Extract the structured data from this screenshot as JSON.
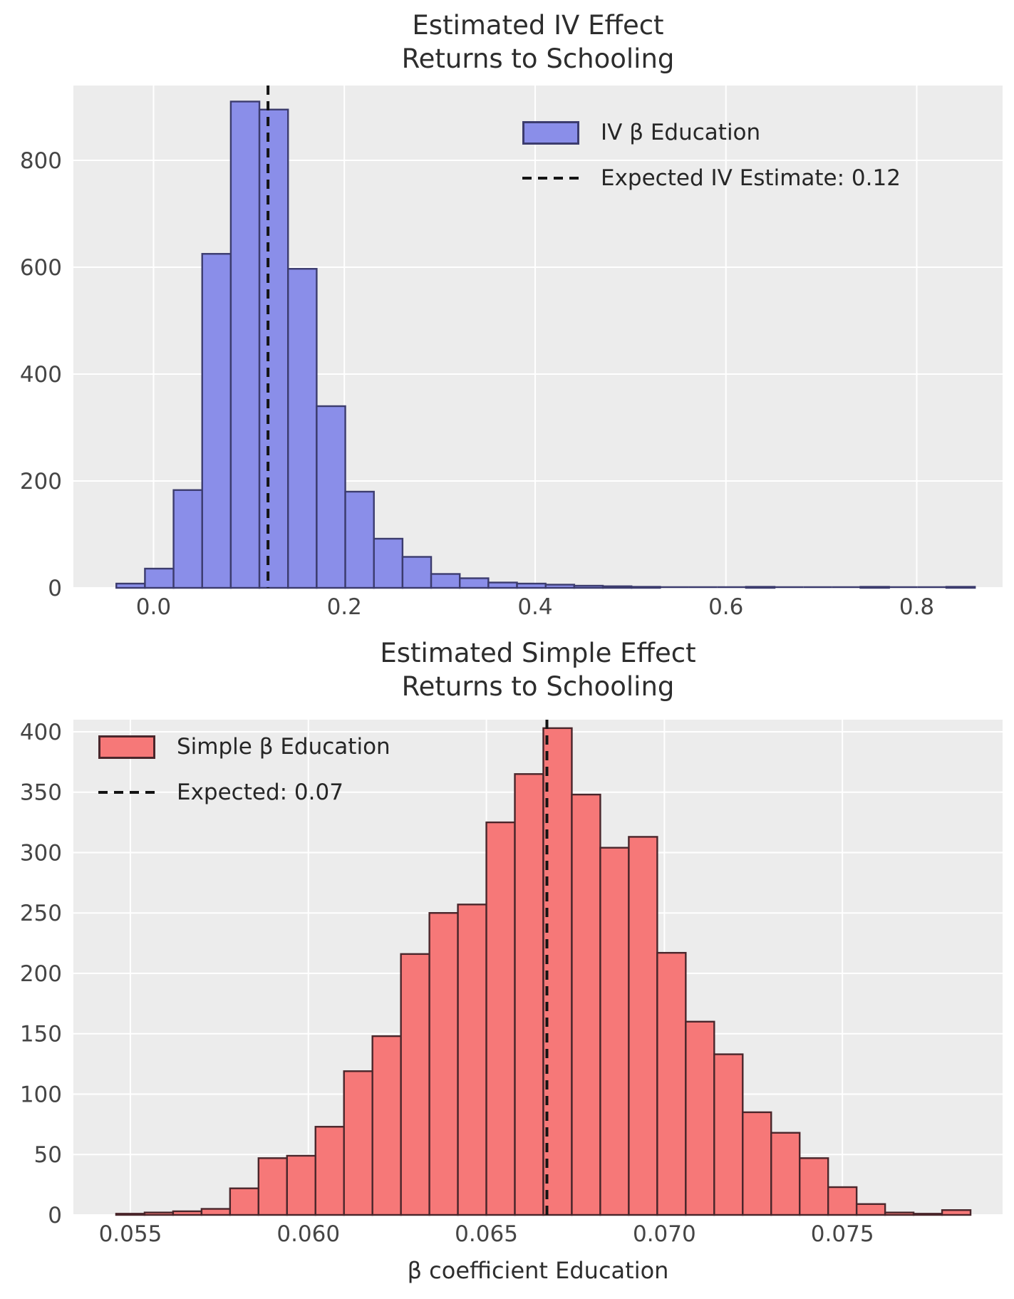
{
  "style": {
    "figure_background": "#ffffff",
    "axes_background": "#ececec",
    "grid_color": "#ffffff",
    "title_color": "#2d2d2d",
    "tick_color": "#454545",
    "legend_text_color": "#262626"
  },
  "chart_data": [
    {
      "type": "bar",
      "subtype": "histogram",
      "title": "Estimated IV Effect\nReturns to Schooling",
      "legend": {
        "position": "upper right",
        "patch_label": "IV β Education",
        "line_label": "Expected IV Estimate: 0.12"
      },
      "colors": {
        "bar_fill": "#8a8ee9",
        "bar_edge": "#3c3c6e",
        "vline": "#141414"
      },
      "vline_value": 0.12,
      "bin_start": -0.039,
      "bin_width": 0.03,
      "counts": [
        8,
        36,
        183,
        625,
        910,
        895,
        597,
        340,
        180,
        92,
        58,
        26,
        18,
        10,
        8,
        6,
        4,
        3,
        2,
        0,
        0,
        0,
        2,
        0,
        0,
        0,
        2,
        0,
        0,
        2
      ],
      "xlim": [
        -0.084,
        0.89
      ],
      "ylim": [
        0,
        940
      ],
      "grid": true,
      "xticks": [
        {
          "v": 0.0,
          "label": "0.0"
        },
        {
          "v": 0.2,
          "label": "0.2"
        },
        {
          "v": 0.4,
          "label": "0.4"
        },
        {
          "v": 0.6,
          "label": "0.6"
        },
        {
          "v": 0.8,
          "label": "0.8"
        }
      ],
      "yticks": [
        {
          "v": 0,
          "label": "0"
        },
        {
          "v": 200,
          "label": "200"
        },
        {
          "v": 400,
          "label": "400"
        },
        {
          "v": 600,
          "label": "600"
        },
        {
          "v": 800,
          "label": "800"
        }
      ]
    },
    {
      "type": "bar",
      "subtype": "histogram",
      "title": "Estimated Simple Effect\nReturns to Schooling",
      "xlabel": "β coefficient Education",
      "legend": {
        "position": "upper left",
        "patch_label": "Simple β Education",
        "line_label": "Expected: 0.07"
      },
      "colors": {
        "bar_fill": "#f67878",
        "bar_edge": "#4a262b",
        "vline": "#141414"
      },
      "vline_value": 0.0667,
      "bin_start": 0.0546,
      "bin_width": 0.0008,
      "counts": [
        1,
        2,
        3,
        5,
        22,
        47,
        49,
        73,
        119,
        148,
        216,
        250,
        257,
        325,
        365,
        403,
        348,
        304,
        313,
        217,
        160,
        133,
        85,
        68,
        47,
        23,
        9,
        2,
        1,
        4
      ],
      "xlim": [
        0.0534,
        0.0795
      ],
      "ylim": [
        0,
        410
      ],
      "grid": true,
      "xticks": [
        {
          "v": 0.055,
          "label": "0.055"
        },
        {
          "v": 0.06,
          "label": "0.060"
        },
        {
          "v": 0.065,
          "label": "0.065"
        },
        {
          "v": 0.07,
          "label": "0.070"
        },
        {
          "v": 0.075,
          "label": "0.075"
        }
      ],
      "yticks": [
        {
          "v": 0,
          "label": "0"
        },
        {
          "v": 50,
          "label": "50"
        },
        {
          "v": 100,
          "label": "100"
        },
        {
          "v": 150,
          "label": "150"
        },
        {
          "v": 200,
          "label": "200"
        },
        {
          "v": 250,
          "label": "250"
        },
        {
          "v": 300,
          "label": "300"
        },
        {
          "v": 350,
          "label": "350"
        },
        {
          "v": 400,
          "label": "400"
        }
      ]
    }
  ]
}
